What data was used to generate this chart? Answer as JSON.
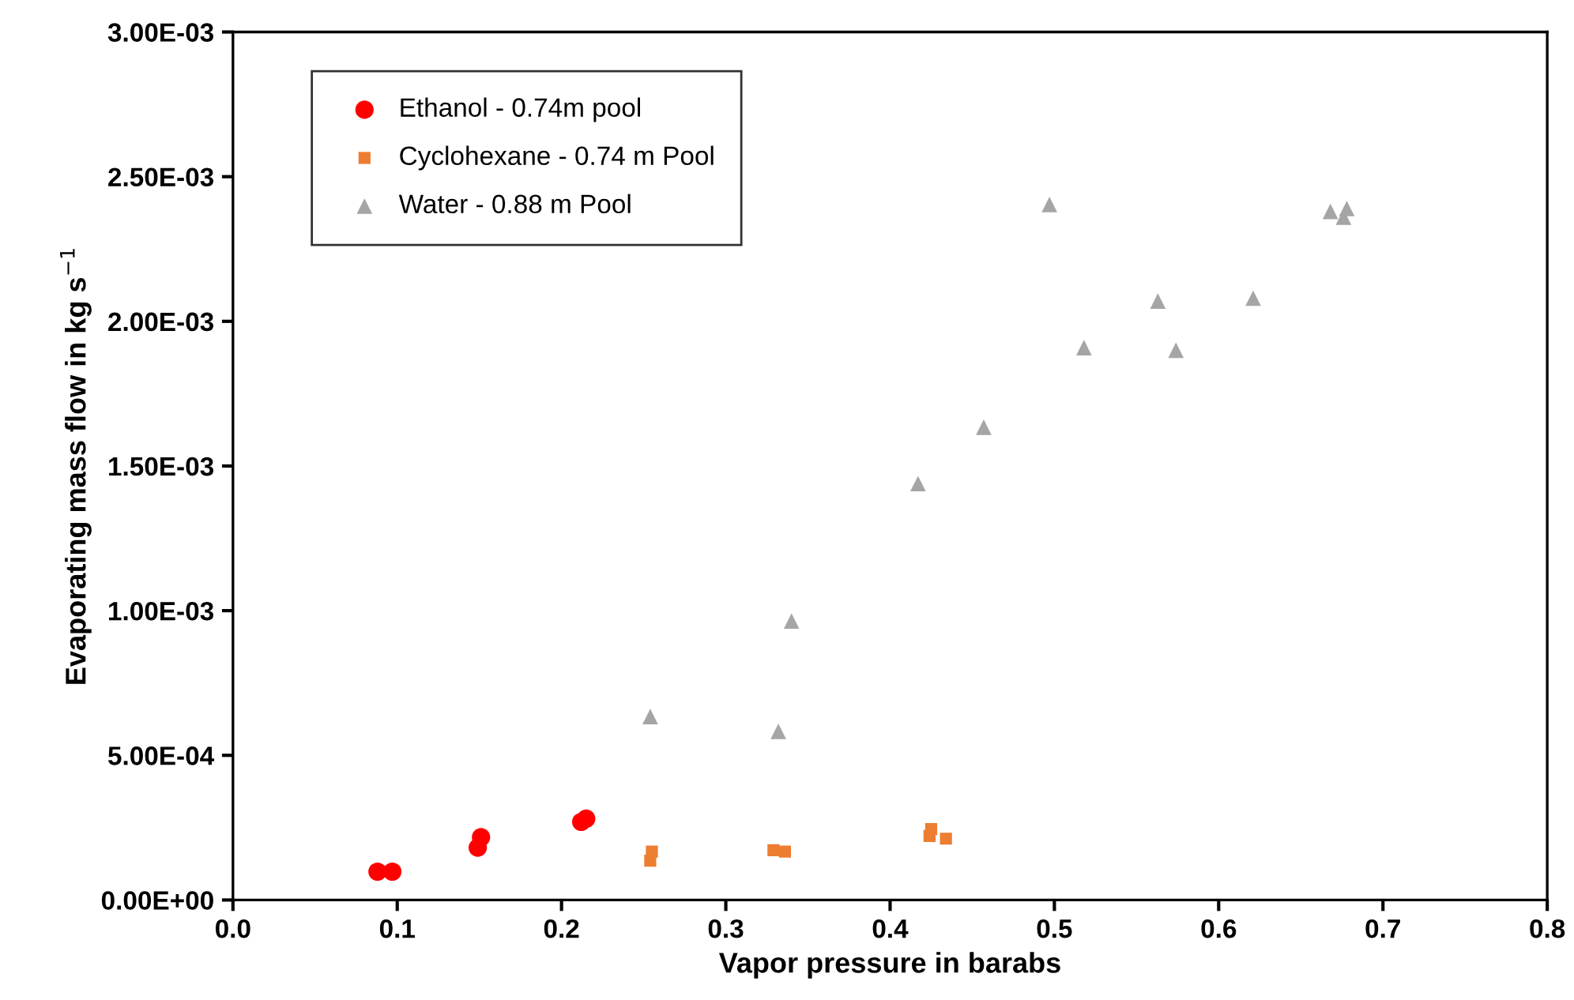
{
  "chart_data": {
    "type": "scatter",
    "xlabel": "Vapor pressure in barabs",
    "ylabel": "Evaporating mass flow in kg s$^{−1}$",
    "series": [
      {
        "name": "Ethanol - 0.74m pool",
        "color": "#ff0000",
        "marker": "circle",
        "x": [
          0.088,
          0.097,
          0.149,
          0.151,
          0.212,
          0.215
        ],
        "values": [
          9.8e-05,
          9.8e-05,
          0.000181,
          0.000217,
          0.00027,
          0.000281
        ]
      },
      {
        "name": "Cyclohexane - 0.74 m Pool",
        "color": "#ed7d31",
        "marker": "square",
        "x": [
          0.254,
          0.255,
          0.329,
          0.336,
          0.424,
          0.425,
          0.434
        ],
        "values": [
          0.000136,
          0.000167,
          0.000172,
          0.000167,
          0.000221,
          0.000245,
          0.000212
        ]
      },
      {
        "name": "Water - 0.88 m Pool",
        "color": "#a5a5a5",
        "marker": "triangle",
        "x": [
          0.254,
          0.332,
          0.34,
          0.417,
          0.457,
          0.497,
          0.518,
          0.563,
          0.574,
          0.621,
          0.668,
          0.676,
          0.678
        ],
        "values": [
          0.000634,
          0.000583,
          0.000964,
          0.001439,
          0.001634,
          0.002404,
          0.001909,
          0.00207,
          0.0019,
          0.00208,
          0.00238,
          0.00236,
          0.00239
        ]
      }
    ],
    "xlim": [
      0,
      0.8
    ],
    "ylim": [
      0,
      0.003
    ],
    "xticks": [
      {
        "value": 0,
        "label": "0.0"
      },
      0.1,
      0.2,
      0.3,
      0.4,
      0.5,
      0.6,
      0.7,
      0.8
    ],
    "yticks": [
      {
        "value": 0,
        "label": "0.00E+00"
      },
      {
        "value": 0.0005,
        "label": "5.00E-04"
      },
      {
        "value": 0.001,
        "label": "1.00E-03"
      },
      {
        "value": 0.0015,
        "label": "1.50E-03"
      },
      {
        "value": 0.002,
        "label": "2.00E-03"
      },
      {
        "value": 0.0025,
        "label": "2.50E-03"
      },
      {
        "value": 0.003,
        "label": "3.00E-03"
      }
    ],
    "grid": false,
    "legend": "top left"
  }
}
